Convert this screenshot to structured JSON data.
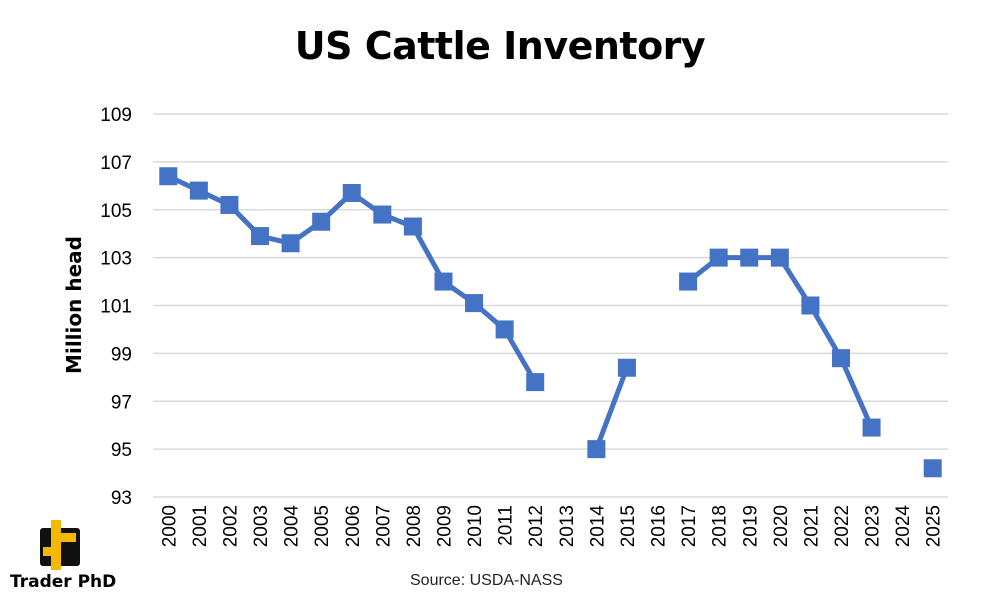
{
  "chart_data": {
    "type": "line",
    "title": "US Cattle Inventory",
    "ylabel": "Million head",
    "xlabel": "",
    "ylim": [
      93,
      109
    ],
    "yticks": [
      93,
      95,
      97,
      99,
      101,
      103,
      105,
      107,
      109
    ],
    "grid": true,
    "categories": [
      "2000",
      "2001",
      "2002",
      "2003",
      "2004",
      "2005",
      "2006",
      "2007",
      "2008",
      "2009",
      "2010",
      "2011",
      "2012",
      "2013",
      "2014",
      "2015",
      "2016",
      "2017",
      "2018",
      "2019",
      "2020",
      "2021",
      "2022",
      "2023",
      "2024",
      "2025"
    ],
    "series": [
      {
        "values": [
          106.4,
          105.8,
          105.2,
          103.9,
          103.6,
          104.5,
          105.7,
          104.8,
          104.3,
          102.0,
          101.1,
          100.0,
          97.8,
          null,
          95.0,
          98.4,
          null,
          102.0,
          103.0,
          103.0,
          103.0,
          101.0,
          98.8,
          95.9,
          null,
          94.2
        ]
      }
    ],
    "source": "Source: USDA-NASS",
    "colors": {
      "series": "#4472c4",
      "grid": "#d9d9d9"
    }
  },
  "brand": {
    "name": "Trader PhD",
    "icon": "trader-phd-logo-icon",
    "color": "#f5b800"
  }
}
